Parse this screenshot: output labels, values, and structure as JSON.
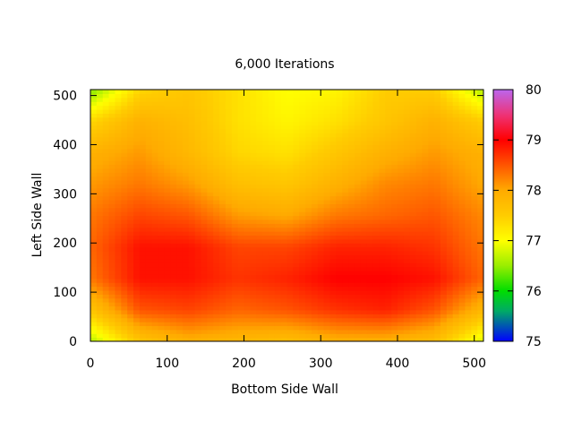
{
  "chart_data": {
    "type": "heatmap",
    "title": "6,000 Iterations",
    "xlabel": "Bottom Side Wall",
    "ylabel": "Left Side Wall",
    "xlim": [
      0,
      512
    ],
    "ylim": [
      0,
      512
    ],
    "x_ticks": [
      "0",
      "100",
      "200",
      "300",
      "400",
      "500"
    ],
    "y_ticks": [
      "0",
      "100",
      "200",
      "300",
      "400",
      "500"
    ],
    "colorbar": {
      "range": [
        75,
        80
      ],
      "ticks": [
        "75",
        "76",
        "77",
        "78",
        "79",
        "80"
      ],
      "stops": [
        {
          "value": 75.0,
          "color": "#0000ff"
        },
        {
          "value": 75.6,
          "color": "#00aa66"
        },
        {
          "value": 76.0,
          "color": "#00dd00"
        },
        {
          "value": 76.5,
          "color": "#99ee00"
        },
        {
          "value": 77.0,
          "color": "#ffff00"
        },
        {
          "value": 77.5,
          "color": "#ffcc00"
        },
        {
          "value": 78.0,
          "color": "#ffaa00"
        },
        {
          "value": 78.5,
          "color": "#ff5500"
        },
        {
          "value": 79.0,
          "color": "#ff0000"
        },
        {
          "value": 79.5,
          "color": "#ee3377"
        },
        {
          "value": 80.0,
          "color": "#bb66ee"
        }
      ]
    },
    "x_samples": [
      0,
      64,
      128,
      192,
      256,
      320,
      384,
      448,
      512
    ],
    "y_samples": [
      0,
      64,
      128,
      192,
      256,
      320,
      384,
      448,
      512
    ],
    "z": [
      [
        76.6,
        77.6,
        77.9,
        77.8,
        77.7,
        77.9,
        77.9,
        77.7,
        76.8
      ],
      [
        77.6,
        78.5,
        78.6,
        78.4,
        78.5,
        78.7,
        78.8,
        78.5,
        77.8
      ],
      [
        78.3,
        78.9,
        78.9,
        78.7,
        78.8,
        79.0,
        79.0,
        78.9,
        78.4
      ],
      [
        78.4,
        78.9,
        78.9,
        78.6,
        78.6,
        78.8,
        78.8,
        78.7,
        78.3
      ],
      [
        78.3,
        78.6,
        78.5,
        78.1,
        78.0,
        78.3,
        78.4,
        78.5,
        78.2
      ],
      [
        78.1,
        78.3,
        78.1,
        77.7,
        77.6,
        77.9,
        78.2,
        78.3,
        78.0
      ],
      [
        77.9,
        78.1,
        77.8,
        77.4,
        77.3,
        77.6,
        77.9,
        78.1,
        77.9
      ],
      [
        77.4,
        77.9,
        77.7,
        77.3,
        77.1,
        77.3,
        77.6,
        77.9,
        77.5
      ],
      [
        76.4,
        77.4,
        77.6,
        77.3,
        77.0,
        77.1,
        77.5,
        77.5,
        76.6
      ]
    ]
  }
}
